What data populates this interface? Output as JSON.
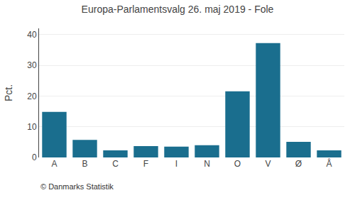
{
  "chart_data": {
    "type": "bar",
    "title": "Europa-Parlamentsvalg 26. maj 2019 - Fole",
    "ylabel": "Pct.",
    "annotations": [
      "© Danmarks Statistik"
    ],
    "categories": [
      "A",
      "B",
      "C",
      "F",
      "I",
      "N",
      "O",
      "V",
      "Ø",
      "Å"
    ],
    "values": [
      14.8,
      5.7,
      2.3,
      3.7,
      3.5,
      4.0,
      21.5,
      37.2,
      5.1,
      2.3
    ],
    "color": "#1a6e8e",
    "ylim": [
      0,
      42
    ],
    "yticks": [
      0,
      10,
      20,
      30,
      40
    ],
    "grid": true
  }
}
